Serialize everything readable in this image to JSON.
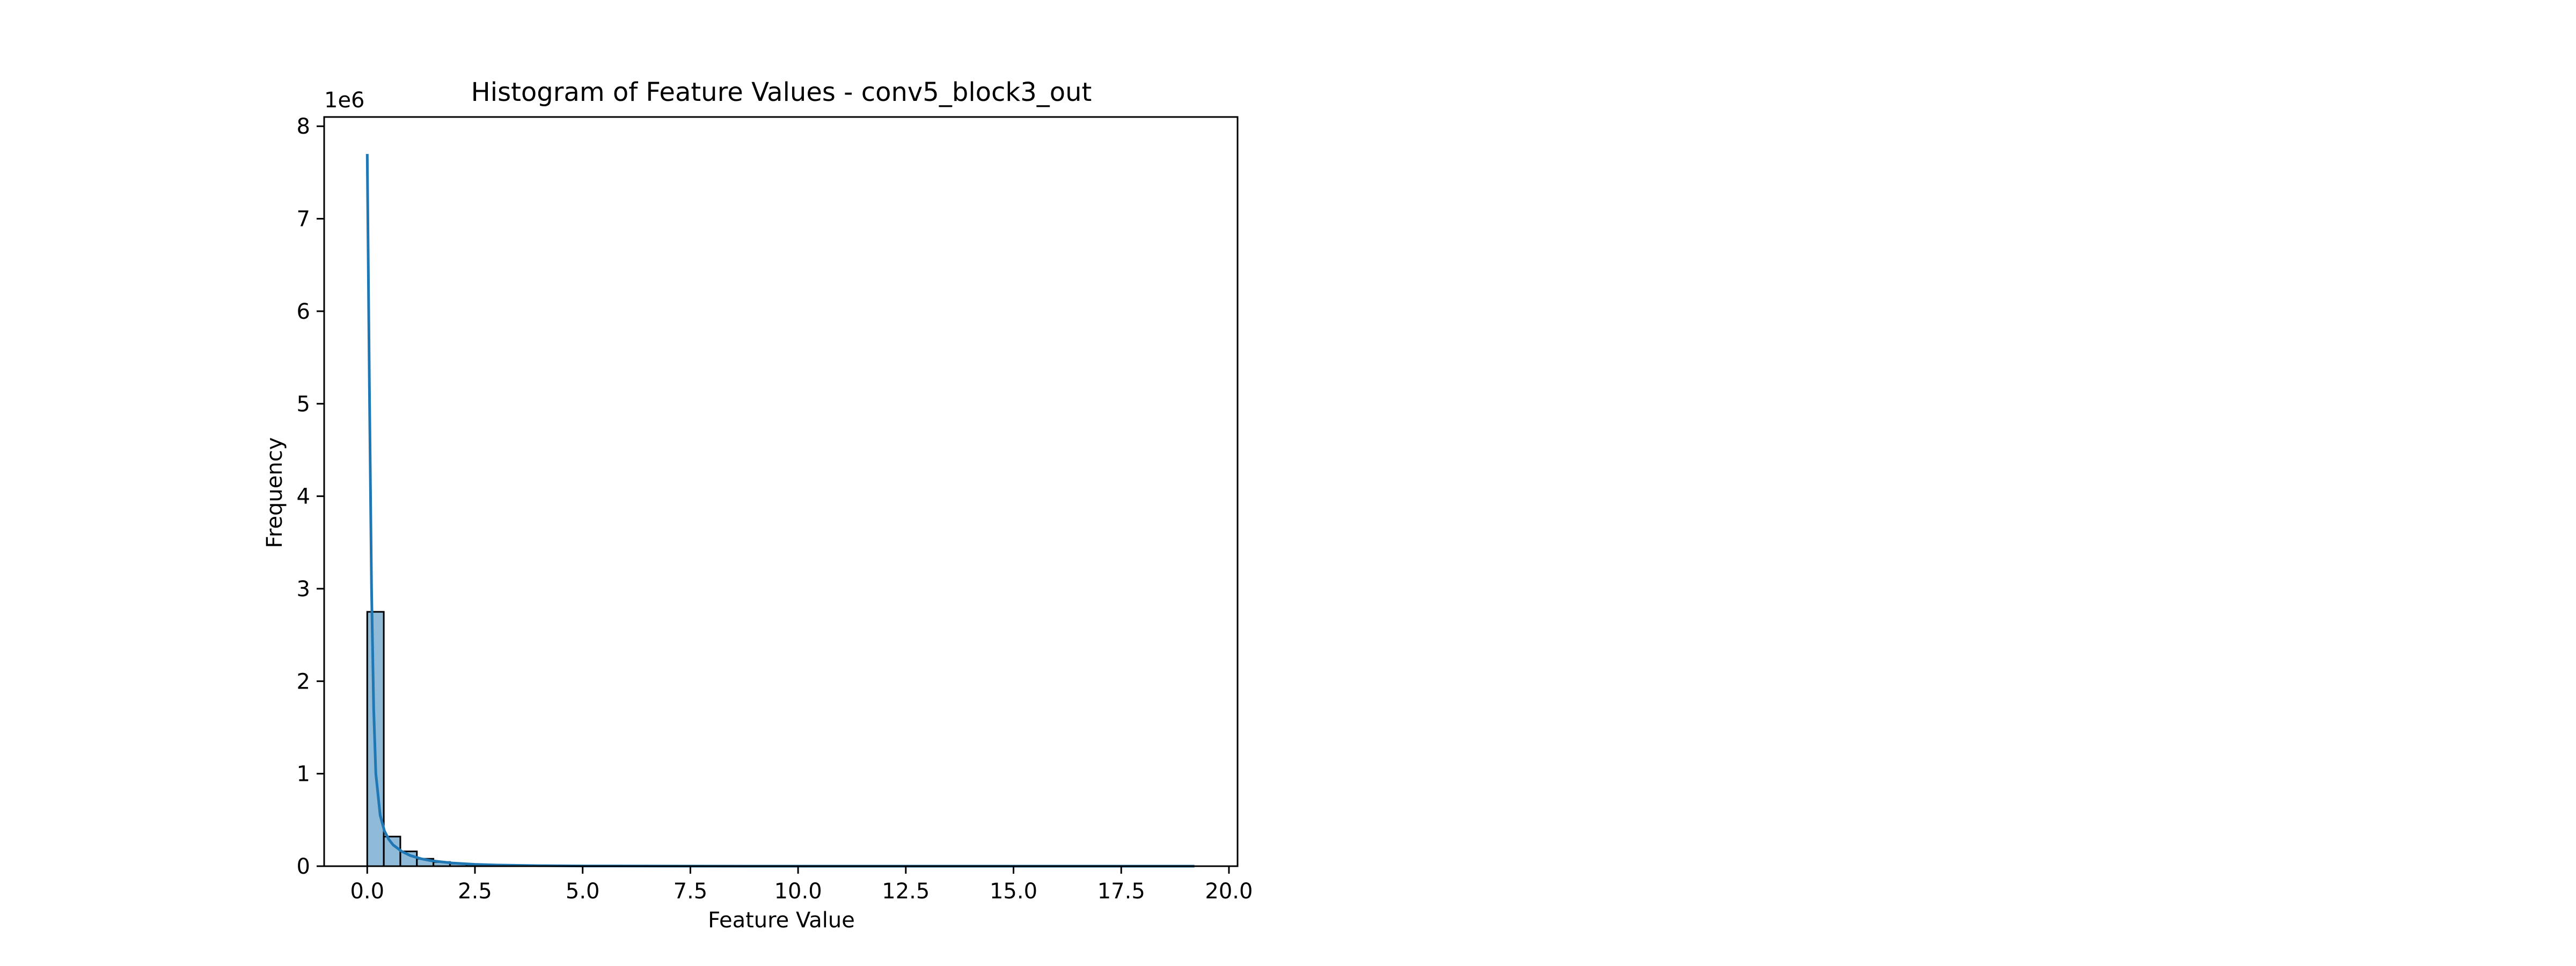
{
  "chart_data": {
    "type": "bar",
    "title": "Histogram of Feature Values - conv5_block3_out",
    "xlabel": "Feature Value",
    "ylabel": "Frequency",
    "y_offset_label": "1e6",
    "xlim": [
      -1.0,
      20.2
    ],
    "ylim": [
      0,
      8100000
    ],
    "xticks": [
      0.0,
      2.5,
      5.0,
      7.5,
      10.0,
      12.5,
      15.0,
      17.5,
      20.0
    ],
    "xtick_labels": [
      "0.0",
      "2.5",
      "5.0",
      "7.5",
      "10.0",
      "12.5",
      "15.0",
      "17.5",
      "20.0"
    ],
    "yticks": [
      0,
      1000000,
      2000000,
      3000000,
      4000000,
      5000000,
      6000000,
      7000000,
      8000000
    ],
    "ytick_labels": [
      "0",
      "1",
      "2",
      "3",
      "4",
      "5",
      "6",
      "7",
      "8"
    ],
    "grid": false,
    "bins": {
      "start": 0.0,
      "width": 0.384,
      "values": [
        2750000,
        320000,
        160000,
        80000,
        45000,
        28000,
        18000,
        12000,
        8500,
        6000,
        4500,
        3500,
        2800,
        2200,
        1800,
        1500,
        1200,
        1000,
        850,
        700,
        600,
        500,
        420,
        360,
        300,
        260,
        220,
        190,
        160,
        140,
        120,
        100,
        90,
        80,
        70,
        60,
        50,
        45,
        40,
        35,
        30,
        26,
        22,
        19,
        16,
        13,
        10,
        8,
        6,
        4
      ]
    },
    "kde": {
      "x": [
        0.0,
        0.05,
        0.1,
        0.15,
        0.2,
        0.3,
        0.4,
        0.5,
        0.6,
        0.8,
        1.0,
        1.25,
        1.5,
        2.0,
        2.5,
        3.0,
        4.0,
        5.0,
        7.5,
        10.0,
        12.5,
        15.0,
        17.5,
        19.2
      ],
      "y": [
        7700000,
        5200000,
        3000000,
        1700000,
        1000000,
        550000,
        380000,
        290000,
        230000,
        160000,
        115000,
        80000,
        58000,
        33000,
        20000,
        12000,
        5500,
        2500,
        700,
        250,
        100,
        50,
        20,
        10
      ]
    },
    "colors": {
      "bar": "#1f77b4",
      "line": "#1f77b4"
    }
  }
}
